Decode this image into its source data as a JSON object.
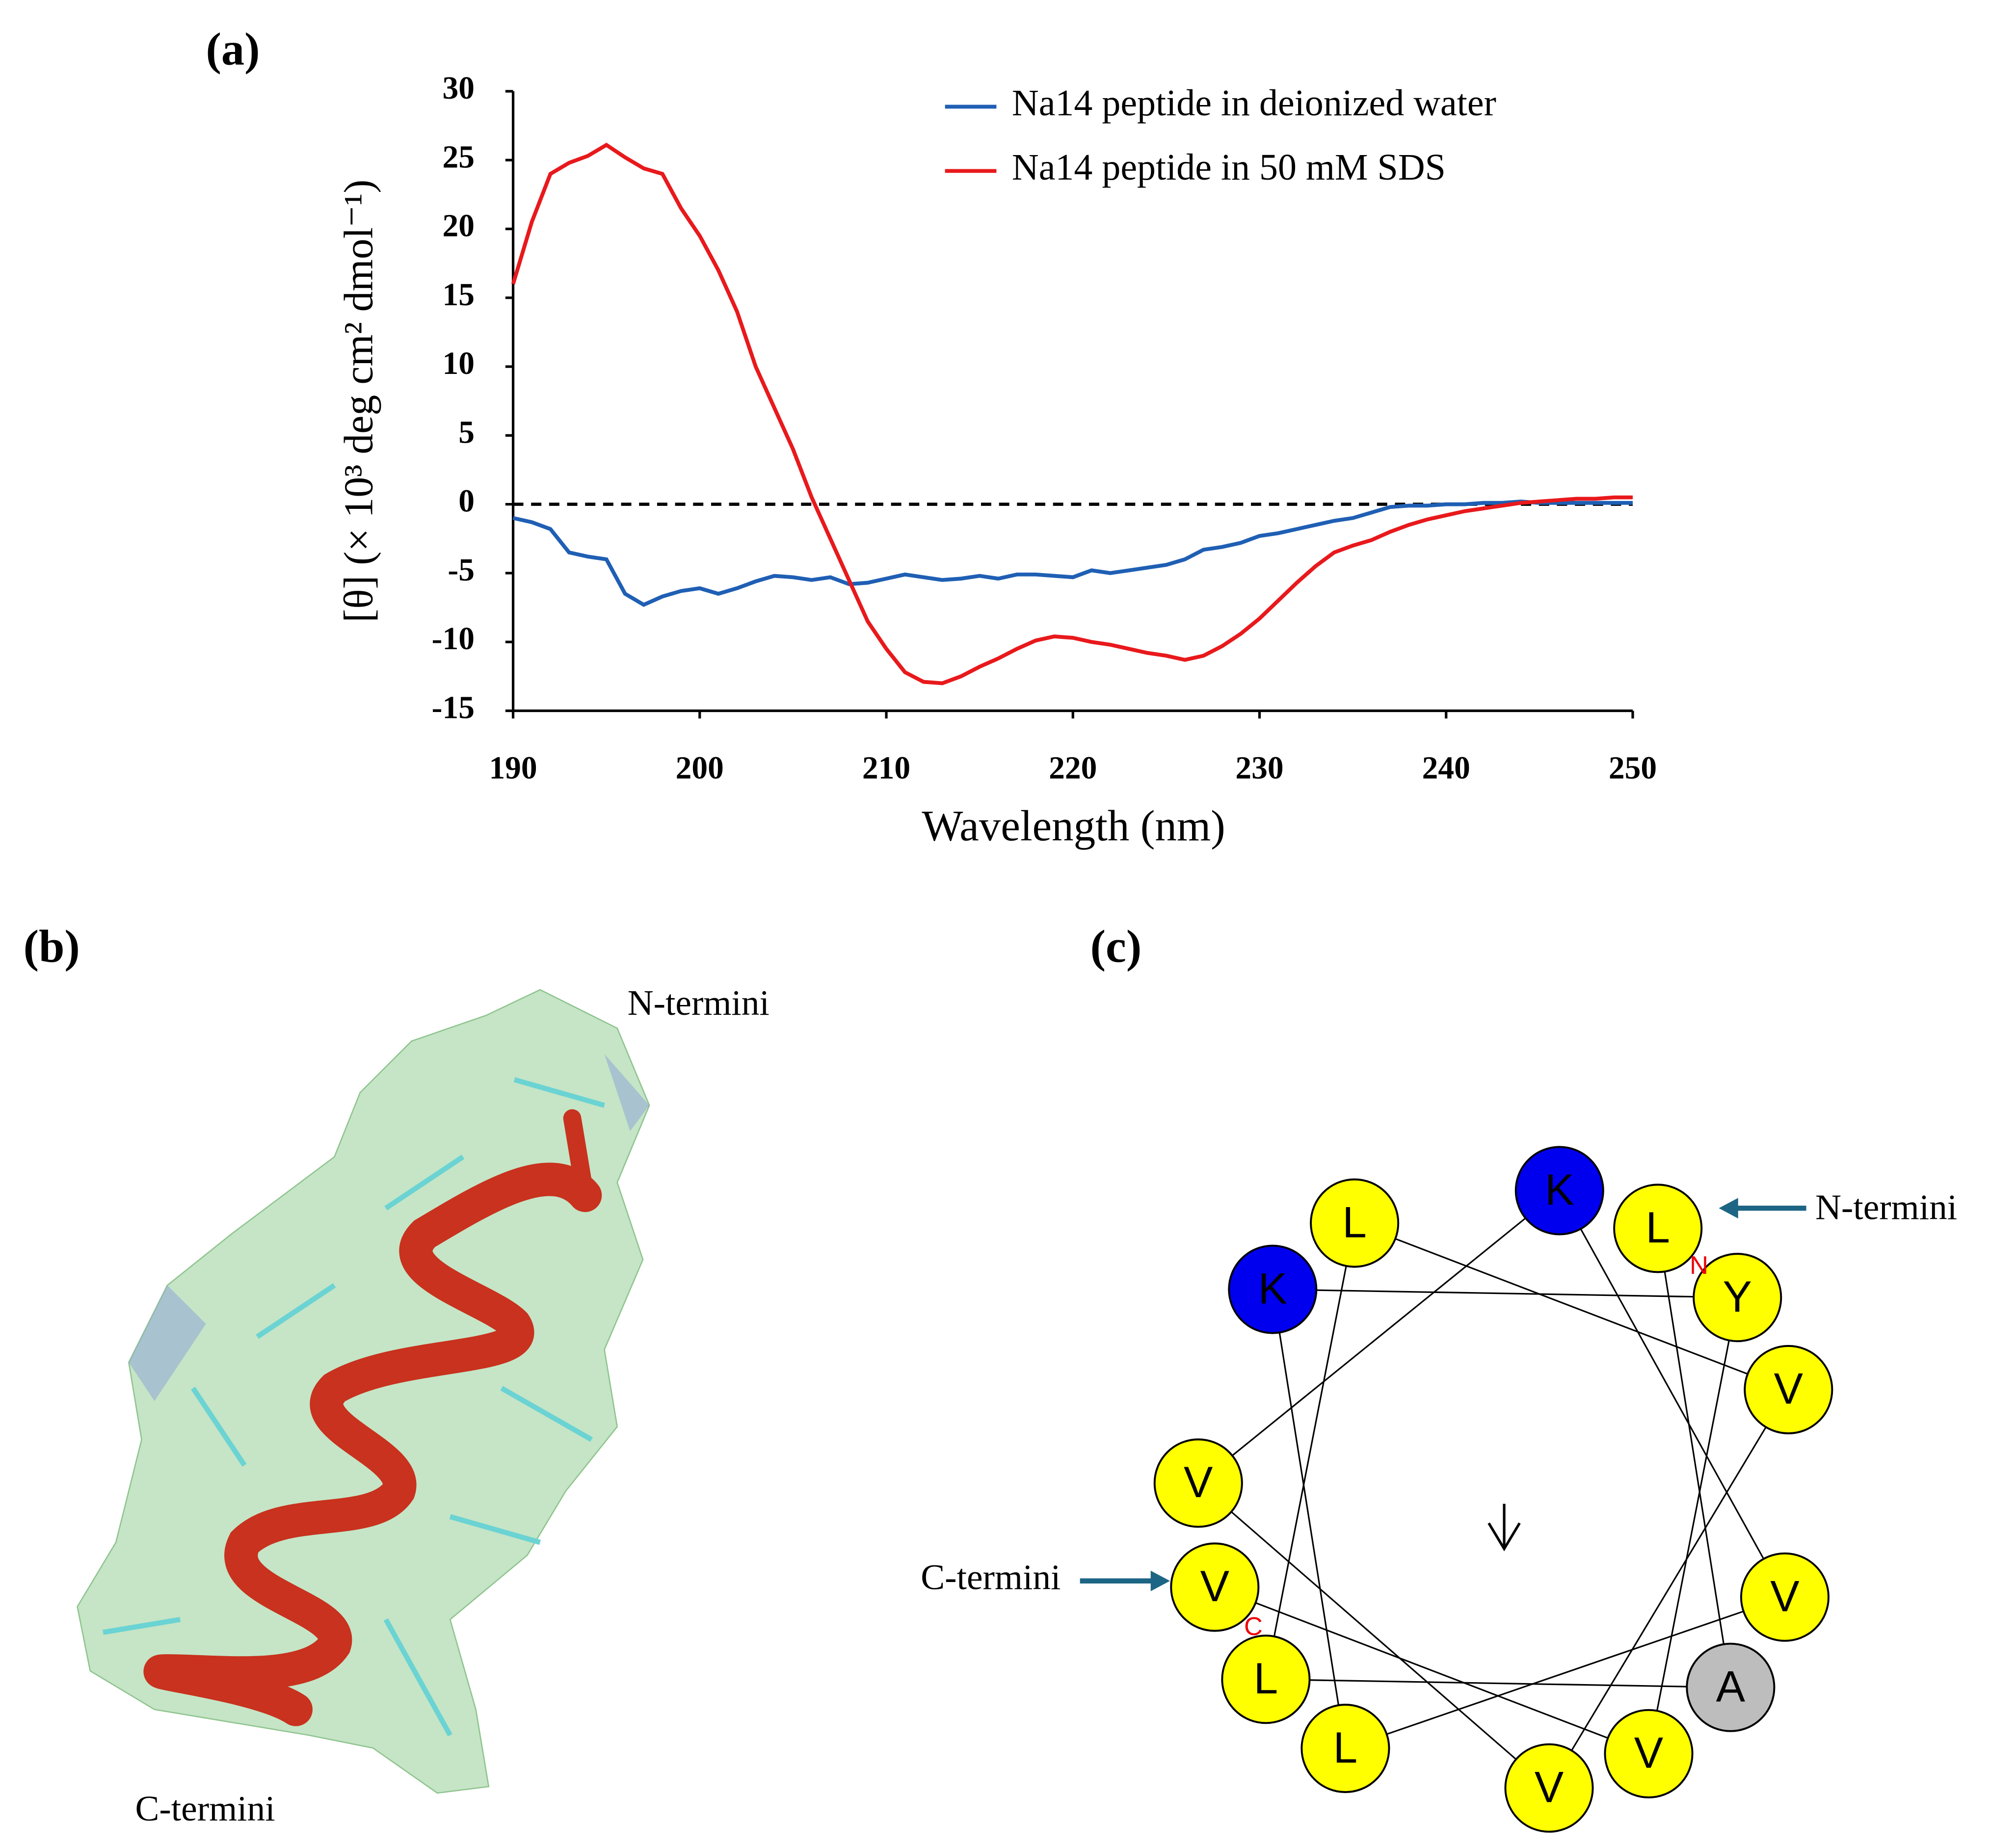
{
  "chart_data": {
    "type": "line",
    "x_label": "Wavelength (nm)",
    "y_label": "[θ] (× 10³ deg cm² dmol⁻¹)",
    "x": [
      190,
      191,
      192,
      193,
      194,
      195,
      196,
      197,
      198,
      199,
      200,
      201,
      202,
      203,
      204,
      205,
      206,
      207,
      208,
      209,
      210,
      211,
      212,
      213,
      214,
      215,
      216,
      217,
      218,
      219,
      220,
      221,
      222,
      223,
      224,
      225,
      226,
      227,
      228,
      229,
      230,
      231,
      232,
      233,
      234,
      235,
      236,
      237,
      238,
      239,
      240,
      241,
      242,
      243,
      244,
      245,
      246,
      247,
      248,
      249,
      250
    ],
    "series": [
      {
        "name": "Na14 peptide in deionized water",
        "color": "#1f5fb4",
        "values": [
          -1,
          -1.3,
          -1.8,
          -3.5,
          -3.8,
          -4,
          -6.5,
          -7.3,
          -6.7,
          -6.3,
          -6.1,
          -6.5,
          -6.1,
          -5.6,
          -5.2,
          -5.3,
          -5.5,
          -5.3,
          -5.8,
          -5.7,
          -5.4,
          -5.1,
          -5.3,
          -5.5,
          -5.4,
          -5.2,
          -5.4,
          -5.1,
          -5.1,
          -5.2,
          -5.3,
          -4.8,
          -5,
          -4.8,
          -4.6,
          -4.4,
          -4,
          -3.3,
          -3.1,
          -2.8,
          -2.3,
          -2.1,
          -1.8,
          -1.5,
          -1.2,
          -1,
          -0.6,
          -0.2,
          -0.1,
          -0.1,
          0,
          0,
          0.1,
          0.1,
          0.2,
          0.1,
          0.1,
          0.1,
          0.1,
          0.1,
          0.1
        ]
      },
      {
        "name": "Na14 peptide in 50 mM SDS",
        "color": "#e8191c",
        "values": [
          16,
          20.5,
          24,
          24.8,
          25.3,
          26.1,
          25.2,
          24.4,
          24,
          21.5,
          19.5,
          17,
          14,
          10,
          7,
          4,
          0.5,
          -2.5,
          -5.5,
          -8.5,
          -10.5,
          -12.2,
          -12.9,
          -13,
          -12.5,
          -11.8,
          -11.2,
          -10.5,
          -9.9,
          -9.6,
          -9.7,
          -10,
          -10.2,
          -10.5,
          -10.8,
          -11,
          -11.3,
          -11,
          -10.3,
          -9.4,
          -8.3,
          -7,
          -5.7,
          -4.5,
          -3.5,
          -3,
          -2.6,
          -2,
          -1.5,
          -1.1,
          -0.8,
          -0.5,
          -0.3,
          -0.1,
          0.1,
          0.2,
          0.3,
          0.4,
          0.4,
          0.5,
          0.5
        ]
      }
    ],
    "xlim": [
      190,
      250
    ],
    "xticks": [
      190,
      200,
      210,
      220,
      230,
      240,
      250
    ],
    "ylim": [
      -15,
      30
    ],
    "yticks": [
      -15,
      -10,
      -5,
      0,
      5,
      10,
      15,
      20,
      25,
      30
    ],
    "reference_line": 0,
    "legend": "top-right"
  },
  "panels": {
    "a": "(a)",
    "b": "(b)",
    "c": "(c)"
  },
  "structure": {
    "n_label": "N-termini",
    "c_label": "C-termini"
  },
  "wheel": {
    "n_marker": "N",
    "c_marker": "C",
    "n_label": "N-termini",
    "c_label": "C-termini",
    "residues": [
      {
        "label": "L",
        "color": "#ffff00"
      },
      {
        "label": "A",
        "color": "#bdbdbd"
      },
      {
        "label": "L",
        "color": "#ffff00"
      },
      {
        "label": "L",
        "color": "#ffff00"
      },
      {
        "label": "V",
        "color": "#ffff00"
      },
      {
        "label": "V",
        "color": "#ffff00"
      },
      {
        "label": "V",
        "color": "#ffff00"
      },
      {
        "label": "K",
        "color": "#0000ee"
      },
      {
        "label": "V",
        "color": "#ffff00"
      },
      {
        "label": "L",
        "color": "#ffff00"
      },
      {
        "label": "K",
        "color": "#0000ee"
      },
      {
        "label": "Y",
        "color": "#ffff00"
      },
      {
        "label": "V",
        "color": "#ffff00"
      },
      {
        "label": "V",
        "color": "#ffff00"
      }
    ]
  }
}
